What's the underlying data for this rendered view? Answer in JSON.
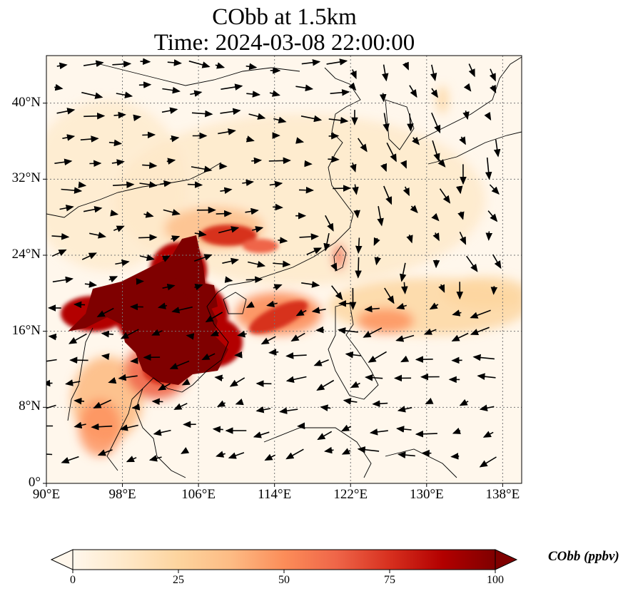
{
  "title": {
    "line1": "CObb at 1.5km",
    "line2": "Time: 2024-03-08 22:00:00"
  },
  "map": {
    "lon_range": [
      90,
      140
    ],
    "lat_range": [
      0,
      45
    ],
    "projection": "PlateCarree",
    "gridlines": "dotted",
    "colormap": "OrRd",
    "x_ticks": [
      {
        "value": 90,
        "label": "90°E"
      },
      {
        "value": 98,
        "label": "98°E"
      },
      {
        "value": 106,
        "label": "106°E"
      },
      {
        "value": 114,
        "label": "114°E"
      },
      {
        "value": 122,
        "label": "122°E"
      },
      {
        "value": 130,
        "label": "130°E"
      },
      {
        "value": 138,
        "label": "138°E"
      }
    ],
    "y_ticks": [
      {
        "value": 0,
        "label": "0°"
      },
      {
        "value": 8,
        "label": "8°N"
      },
      {
        "value": 16,
        "label": "16°N"
      },
      {
        "value": 24,
        "label": "24°N"
      },
      {
        "value": 32,
        "label": "32°N"
      },
      {
        "value": 40,
        "label": "40°N"
      }
    ]
  },
  "colorbar": {
    "label": "CObb (ppbv)",
    "ticks": [
      "0",
      "25",
      "50",
      "75",
      "100"
    ],
    "range": [
      0,
      100
    ],
    "extend": "both",
    "colors": [
      "#fff7ec",
      "#fee8c8",
      "#fdd49e",
      "#fdbb84",
      "#fc8d59",
      "#ef6548",
      "#d7301f",
      "#b30000",
      "#7f0000"
    ]
  }
}
